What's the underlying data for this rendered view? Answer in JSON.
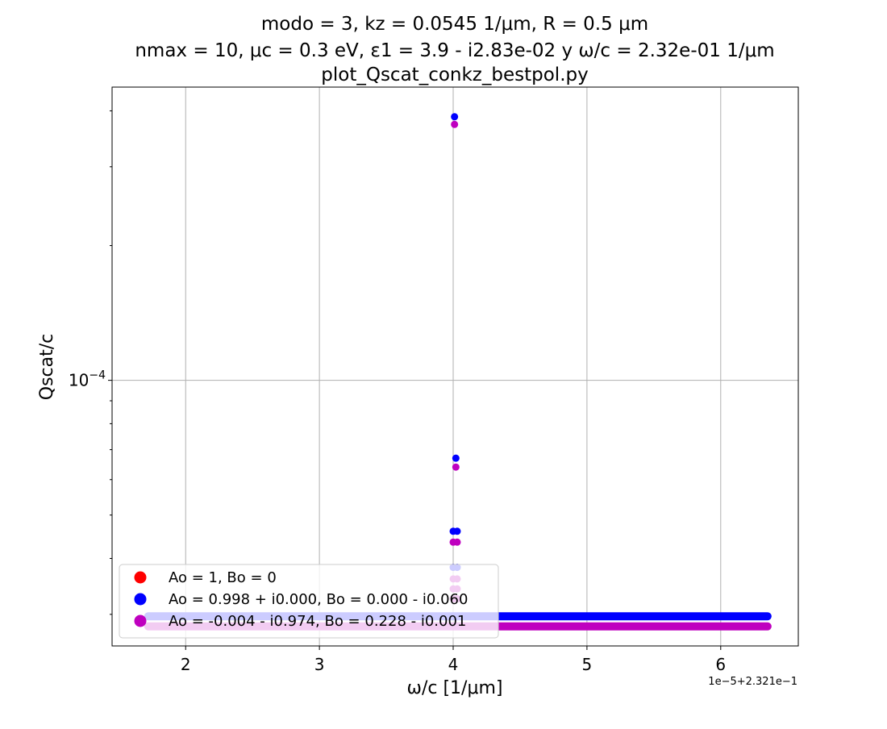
{
  "chart_data": {
    "type": "scatter",
    "title_lines": [
      "modo = 3, kz = 0.0545 1/μm, R = 0.5 μm",
      "nmax = 10, μc = 0.3 eV, ε1 = 3.9 - i2.83e-02 y ω/c = 2.32e-01 1/μm",
      "plot_Qscat_conkz_bestpol.py"
    ],
    "xlabel": "ω/c [1/μm]",
    "ylabel": "Qscat/c",
    "x_offset_label": "1e−5+2.321e−1",
    "x_ticks": [
      2,
      3,
      4,
      5,
      6
    ],
    "x_tick_labels": [
      "2",
      "3",
      "4",
      "5",
      "6"
    ],
    "xlim": [
      1.45,
      6.58
    ],
    "y_scale": "log",
    "ylim": [
      2.55e-05,
      0.000452
    ],
    "y_major_tick_values": [
      0.0001
    ],
    "y_major_tick_labels": [
      {
        "base": "10",
        "exp": "−4"
      }
    ],
    "grid": true,
    "legend_position": "lower-left",
    "series": [
      {
        "name": "Ao = 1, Bo = 0",
        "color": "#ff0000",
        "points": []
      },
      {
        "name": "Ao = 0.998 + i0.000, Bo = 0.000 - i0.060",
        "color": "#0000ff",
        "baseline": {
          "x_start": 1.72,
          "x_end": 6.35,
          "y": 2.97e-05
        },
        "points": [
          {
            "x": 4.01,
            "y": 0.000388
          },
          {
            "x": 4.02,
            "y": 6.7e-05
          },
          {
            "x": 4.0,
            "y": 4.6e-05
          },
          {
            "x": 4.03,
            "y": 4.6e-05
          },
          {
            "x": 4.0,
            "y": 3.82e-05
          },
          {
            "x": 4.03,
            "y": 3.82e-05
          }
        ]
      },
      {
        "name": "Ao = -0.004 - i0.974, Bo = 0.228 - i0.001",
        "color": "#bf00bf",
        "baseline": {
          "x_start": 1.72,
          "x_end": 6.35,
          "y": 2.82e-05
        },
        "points": [
          {
            "x": 4.01,
            "y": 0.000373
          },
          {
            "x": 4.02,
            "y": 6.4e-05
          },
          {
            "x": 4.0,
            "y": 4.35e-05
          },
          {
            "x": 4.03,
            "y": 4.35e-05
          },
          {
            "x": 4.0,
            "y": 3.6e-05
          },
          {
            "x": 4.03,
            "y": 3.6e-05
          },
          {
            "x": 4.0,
            "y": 3.42e-05
          },
          {
            "x": 4.03,
            "y": 3.42e-05
          },
          {
            "x": 4.0,
            "y": 3.25e-05
          },
          {
            "x": 4.03,
            "y": 3.25e-05
          }
        ]
      }
    ]
  }
}
